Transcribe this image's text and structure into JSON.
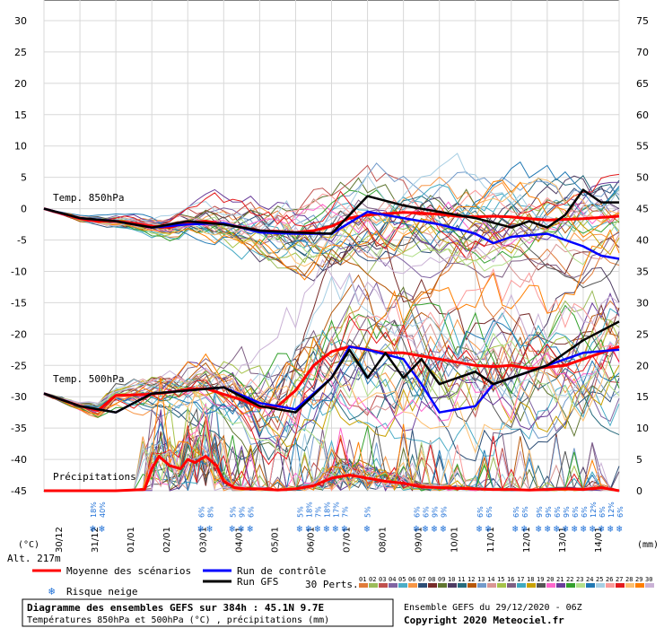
{
  "chart_data": {
    "type": "line",
    "title": "Diagramme des ensembles GEFS sur 384h : 45.1N 9.7E",
    "subtitle": "Températures 850hPa et 500hPa (°C) , précipitations (mm)",
    "run_info": "Ensemble GEFS du 29/12/2020 - 06Z",
    "copyright": "Copyright 2020 Meteociel.fr",
    "left_axis": {
      "ticks": [
        30,
        25,
        20,
        15,
        10,
        5,
        0,
        -5,
        -10,
        -15,
        -20,
        -25,
        -30,
        -35,
        -40,
        -45
      ],
      "unit": "(°C)",
      "ylim": [
        -45,
        30
      ]
    },
    "right_axis": {
      "ticks": [
        75,
        70,
        65,
        60,
        55,
        50,
        45,
        40,
        35,
        30,
        25,
        20,
        15,
        10,
        5,
        0
      ],
      "unit": "(mm)",
      "ylim": [
        0,
        75
      ]
    },
    "x_labels": [
      "30/12",
      "31/12",
      "01/01",
      "02/01",
      "03/01",
      "04/01",
      "05/01",
      "06/01",
      "07/01",
      "08/01",
      "09/01",
      "10/01",
      "11/01",
      "12/01",
      "13/01",
      "14/01"
    ],
    "panel_labels": {
      "t850": "Temp. 850hPa",
      "t500": "Temp. 500hPa",
      "precip": "Précipitations"
    },
    "altitude": "Alt. 217m",
    "legend": {
      "mean": "Moyenne des scénarios",
      "control": "Run de contrôle",
      "gfs": "Run GFS",
      "snow": "Risque neige",
      "perts": "30 Perts.",
      "pert_ids": [
        "01",
        "02",
        "03",
        "04",
        "05",
        "06",
        "07",
        "08",
        "09",
        "10",
        "11",
        "12",
        "13",
        "14",
        "15",
        "16",
        "17",
        "18",
        "19",
        "20",
        "21",
        "22",
        "23",
        "24",
        "25",
        "26",
        "27",
        "28",
        "29",
        "30"
      ],
      "pert_colors": [
        "#e07b39",
        "#9bbb59",
        "#c0504d",
        "#8064a2",
        "#4bacc6",
        "#f79646",
        "#2c4d75",
        "#772c2a",
        "#5f7530",
        "#4d3b62",
        "#276a7c",
        "#b65708",
        "#729aca",
        "#d99694",
        "#a5c249",
        "#7f6084",
        "#3fa9c0",
        "#c9a100",
        "#555555",
        "#ff66cc",
        "#6a3d9a",
        "#33a02c",
        "#b2df8a",
        "#1f78b4",
        "#a6cee3",
        "#fb9a99",
        "#e31a1c",
        "#fdbf6f",
        "#ff7f00",
        "#cab2d6"
      ]
    },
    "snow_risk": [
      {
        "day": 1.5,
        "pcts": [
          "18%",
          "40%"
        ]
      },
      {
        "day": 4.5,
        "pcts": [
          "6%",
          "8%"
        ]
      },
      {
        "day": 5.5,
        "pcts": [
          "5%",
          "9%",
          "6%"
        ]
      },
      {
        "day": 7.75,
        "pcts": [
          "5%",
          "18%",
          "7%",
          "18%",
          "17%",
          "7%"
        ]
      },
      {
        "day": 9.0,
        "pcts": [
          "5%"
        ]
      },
      {
        "day": 10.75,
        "pcts": [
          "6%",
          "6%",
          "9%",
          "9%"
        ]
      },
      {
        "day": 12.25,
        "pcts": [
          "6%",
          "6%"
        ]
      },
      {
        "day": 13.25,
        "pcts": [
          "6%",
          "6%"
        ]
      },
      {
        "day": 14.9,
        "pcts": [
          "9%",
          "9%",
          "6%",
          "9%",
          "6%",
          "6%",
          "12%",
          "6%",
          "12%",
          "6%"
        ]
      }
    ],
    "series": [
      {
        "name": "Moyenne des scénarios - T850",
        "color": "#ff0000",
        "x": [
          0,
          0.5,
          1,
          1.5,
          2,
          2.5,
          3,
          3.5,
          4,
          4.5,
          5,
          5.5,
          6,
          6.5,
          7,
          7.5,
          8,
          8.5,
          9,
          9.5,
          10,
          10.5,
          11,
          11.5,
          12,
          12.5,
          13,
          13.5,
          14,
          14.5,
          15,
          15.5,
          16
        ],
        "y": [
          0,
          -0.8,
          -1.6,
          -2,
          -2,
          -2.3,
          -2.8,
          -3,
          -2.2,
          -2,
          -2.4,
          -3,
          -3.5,
          -3.6,
          -3.8,
          -3.5,
          -2.8,
          -1.5,
          -1,
          -0.8,
          -0.6,
          -0.7,
          -0.9,
          -1.2,
          -1.3,
          -1.2,
          -1.3,
          -1.6,
          -1.8,
          -1.7,
          -1.6,
          -1.4,
          -1.2
        ]
      },
      {
        "name": "Run de contrôle - T850",
        "color": "#0000ff",
        "x": [
          0,
          1,
          2,
          3,
          4,
          5,
          6,
          7,
          8,
          9,
          10,
          11,
          12,
          12.5,
          13,
          14,
          14.5,
          15,
          15.5,
          16
        ],
        "y": [
          0,
          -1.5,
          -2,
          -3,
          -2.5,
          -2.3,
          -3.8,
          -4,
          -4,
          -0.5,
          -1.5,
          -2.5,
          -4,
          -5.5,
          -4.5,
          -4,
          -5,
          -6,
          -7.5,
          -8
        ]
      },
      {
        "name": "Run GFS - T850",
        "color": "#000000",
        "x": [
          0,
          1,
          2,
          3,
          4,
          5,
          6,
          7,
          8,
          8.5,
          9,
          10,
          11,
          12,
          13,
          13.5,
          14,
          14.5,
          15,
          15.5,
          16
        ],
        "y": [
          0,
          -1.5,
          -2,
          -3,
          -2,
          -2.5,
          -3.5,
          -3.8,
          -4,
          -1,
          2,
          0.5,
          -0.5,
          -1.5,
          -3,
          -2,
          -3,
          -1,
          3,
          1,
          1
        ]
      },
      {
        "name": "Moyenne des scénarios - T500",
        "color": "#ff0000",
        "x": [
          0,
          0.5,
          1,
          1.5,
          2,
          2.5,
          3,
          3.5,
          4,
          4.5,
          5,
          5.5,
          6,
          6.5,
          7,
          7.5,
          8,
          8.5,
          9,
          9.5,
          10,
          10.5,
          11,
          11.5,
          12,
          12.5,
          13,
          13.5,
          14,
          14.5,
          15,
          15.5,
          16
        ],
        "y": [
          -29.5,
          -30.5,
          -31.5,
          -32.2,
          -29.8,
          -29.7,
          -29.6,
          -29.3,
          -28.8,
          -28.7,
          -29.6,
          -30.5,
          -31.7,
          -31.5,
          -29,
          -25,
          -22.8,
          -22,
          -22.5,
          -23,
          -23,
          -23.5,
          -24,
          -24.5,
          -25,
          -25.2,
          -25,
          -25.5,
          -25.3,
          -25,
          -24,
          -23,
          -22
        ]
      },
      {
        "name": "Run de contrôle - T500",
        "color": "#0000ff",
        "x": [
          0,
          1,
          2,
          3,
          4,
          5,
          6,
          7,
          8,
          8.5,
          9,
          10,
          10.5,
          11,
          11.5,
          12,
          12.5,
          13,
          14,
          15,
          16
        ],
        "y": [
          -29.5,
          -31.5,
          -32.5,
          -29.5,
          -29,
          -28.5,
          -31,
          -32,
          -27,
          -22,
          -22.5,
          -24,
          -28,
          -32.5,
          -32,
          -31.5,
          -28,
          -27,
          -25,
          -23,
          -22.5
        ]
      },
      {
        "name": "Run GFS - T500",
        "color": "#000000",
        "x": [
          0,
          1,
          2,
          3,
          4,
          5,
          6,
          7,
          8,
          8.5,
          9,
          9.5,
          10,
          10.5,
          11,
          11.5,
          12,
          12.5,
          13,
          14,
          15,
          16
        ],
        "y": [
          -29.5,
          -31.5,
          -32.5,
          -29.5,
          -29,
          -28.5,
          -31.5,
          -32.5,
          -27,
          -22.5,
          -27,
          -23,
          -27,
          -24,
          -28,
          -27,
          -26,
          -28,
          -27,
          -25,
          -21,
          -18
        ]
      },
      {
        "name": "Moyenne des scénarios - Précipitations (mm)",
        "color": "#ff0000",
        "x": [
          0,
          1,
          2,
          2.8,
          3,
          3.2,
          3.5,
          3.8,
          4,
          4.2,
          4.5,
          4.8,
          5,
          5.3,
          5.6,
          6,
          6.5,
          7,
          7.5,
          8,
          8.5,
          9,
          9.5,
          10,
          10.5,
          11,
          11.5,
          12,
          12.5,
          13,
          13.5,
          14,
          14.5,
          15,
          15.5,
          16
        ],
        "y": [
          0,
          0,
          0,
          0.2,
          3.5,
          5.5,
          4,
          3.5,
          5,
          4.5,
          5.5,
          4,
          1.5,
          0.5,
          0.3,
          0.3,
          0.1,
          0.3,
          0.8,
          2,
          2.5,
          2,
          1.5,
          1.2,
          0.6,
          0.5,
          0.4,
          0.3,
          0.2,
          0.2,
          0.1,
          0.2,
          0.3,
          0.2,
          0.5,
          0
        ]
      }
    ]
  }
}
